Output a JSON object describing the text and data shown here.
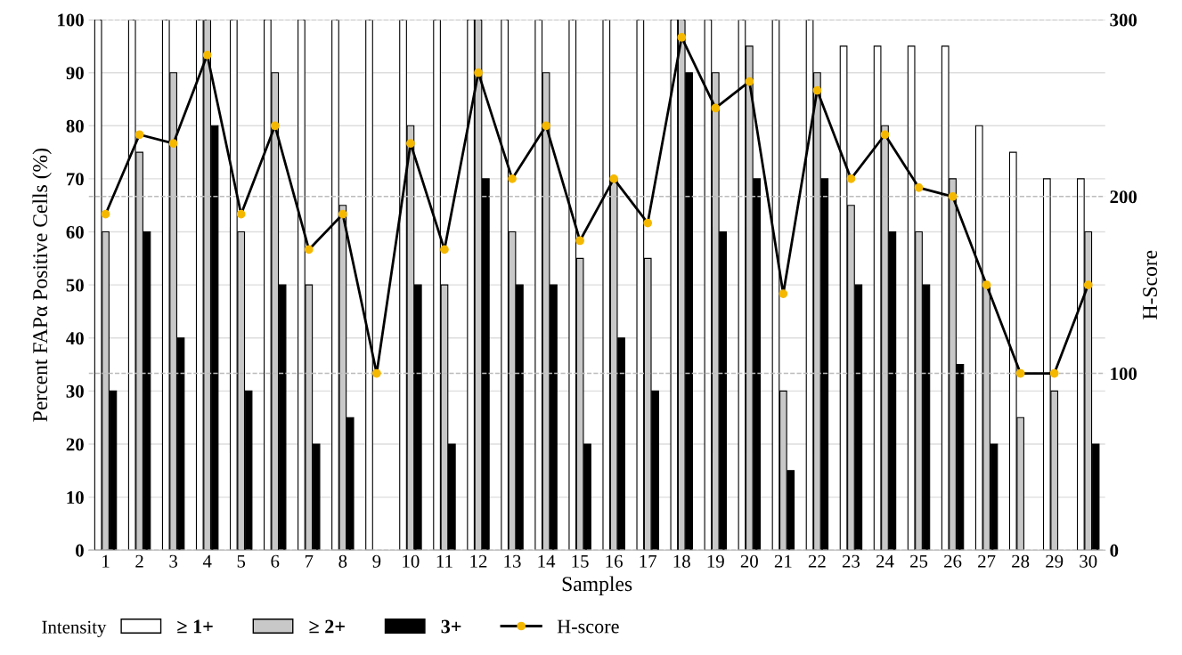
{
  "chart_data": {
    "type": "bar",
    "xlabel": "Samples",
    "ylabel": "Percent FAPα Positive Cells (%)",
    "y2label": "H-Score",
    "legend_title": "Intensity",
    "categories": [
      "1",
      "2",
      "3",
      "4",
      "5",
      "6",
      "7",
      "8",
      "9",
      "10",
      "11",
      "12",
      "13",
      "14",
      "15",
      "16",
      "17",
      "18",
      "19",
      "20",
      "21",
      "22",
      "23",
      "24",
      "25",
      "26",
      "27",
      "28",
      "29",
      "30"
    ],
    "series": [
      {
        "name": "≥ 1+",
        "color": "#ffffff",
        "values": [
          100,
          100,
          100,
          100,
          100,
          100,
          100,
          100,
          100,
          100,
          100,
          100,
          100,
          100,
          100,
          100,
          100,
          100,
          100,
          100,
          100,
          100,
          95,
          95,
          95,
          95,
          80,
          75,
          70,
          70
        ]
      },
      {
        "name": "≥ 2+",
        "color": "#c8c8c8",
        "values": [
          60,
          75,
          90,
          100,
          60,
          90,
          50,
          65,
          0,
          80,
          50,
          100,
          60,
          90,
          55,
          70,
          55,
          100,
          90,
          95,
          30,
          90,
          65,
          80,
          60,
          70,
          50,
          25,
          30,
          60
        ]
      },
      {
        "name": "3+",
        "color": "#000000",
        "values": [
          30,
          60,
          40,
          80,
          30,
          50,
          20,
          25,
          0,
          50,
          20,
          70,
          50,
          50,
          20,
          40,
          30,
          90,
          60,
          70,
          15,
          70,
          50,
          60,
          50,
          35,
          20,
          0,
          0,
          20
        ]
      },
      {
        "name": "H-score",
        "type": "line",
        "axis": "y2",
        "color": "#f5b800",
        "marker": "circle",
        "line_style": "solid",
        "values": [
          190,
          235,
          230,
          280,
          190,
          240,
          170,
          190,
          100,
          230,
          170,
          270,
          210,
          240,
          175,
          210,
          185,
          290,
          250,
          265,
          145,
          260,
          210,
          235,
          205,
          200,
          150,
          100,
          100,
          150
        ]
      }
    ],
    "ylim": [
      0,
      100
    ],
    "yticks": [
      0,
      10,
      20,
      30,
      40,
      50,
      60,
      70,
      80,
      90,
      100
    ],
    "y2lim": [
      0,
      300
    ],
    "y2ticks": [
      0,
      100,
      200,
      300
    ],
    "grid": true,
    "legend": "bottom left"
  }
}
